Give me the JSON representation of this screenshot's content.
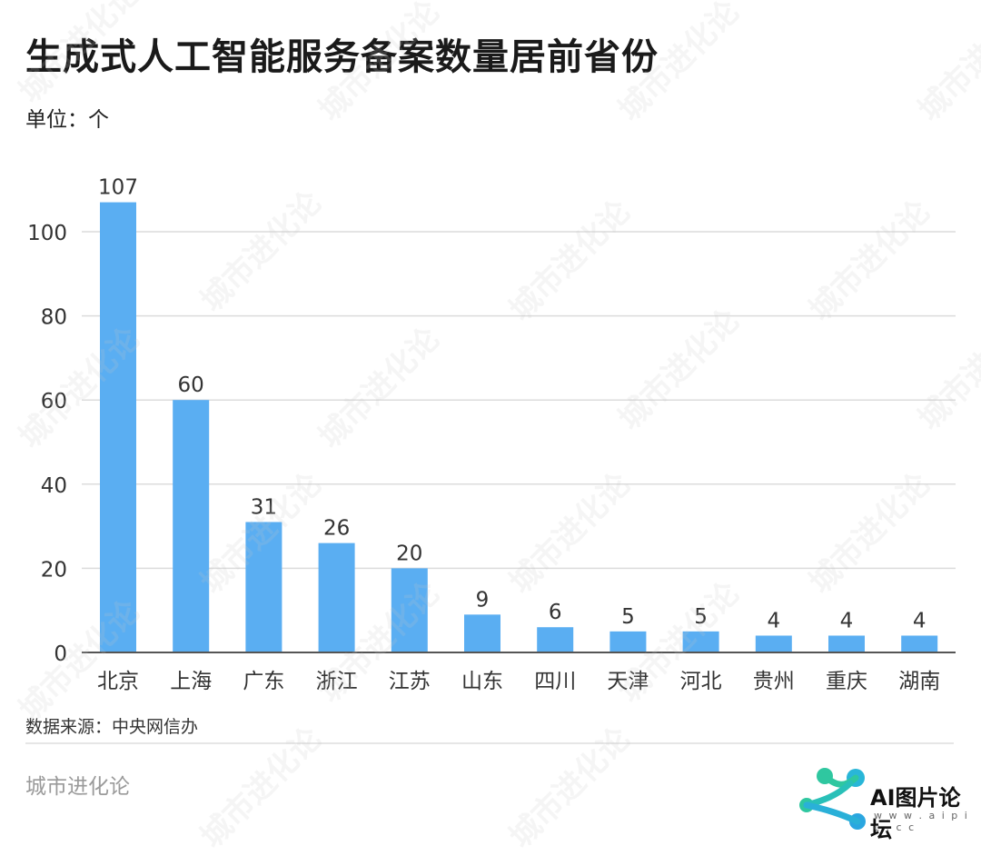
{
  "title": "生成式人工智能服务备案数量居前省份",
  "unit": "单位：个",
  "source": "数据来源：中央网信办",
  "brand": "城市进化论",
  "watermark": "城市进化论",
  "logo": {
    "text": "AI图片论坛",
    "url": "w w w . a i p i c . c c"
  },
  "chart_data": {
    "type": "bar",
    "categories": [
      "北京",
      "上海",
      "广东",
      "浙江",
      "江苏",
      "山东",
      "四川",
      "天津",
      "河北",
      "贵州",
      "重庆",
      "湖南"
    ],
    "values": [
      107,
      60,
      31,
      26,
      20,
      9,
      6,
      5,
      5,
      4,
      4,
      4
    ],
    "ylim": [
      0,
      110
    ],
    "yticks": [
      0,
      20,
      40,
      60,
      80,
      100
    ],
    "bar_color": "#5aaef2",
    "grid": true
  }
}
